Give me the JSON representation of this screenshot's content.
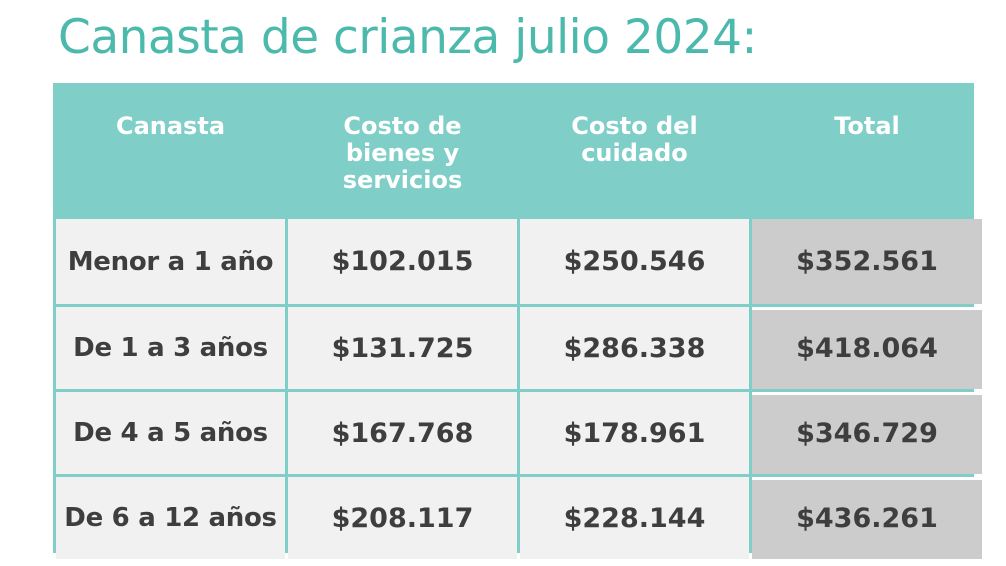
{
  "title": "Canasta de crianza julio 2024:",
  "table": {
    "headers": [
      "Canasta",
      "Costo de\nbienes y\nservicios",
      "Costo del\ncuidado",
      "Total"
    ],
    "rows": [
      [
        "Menor a 1 año",
        "$102.015",
        "$250.546",
        "$352.561"
      ],
      [
        "De 1 a 3 años",
        "$131.725",
        "$286.338",
        "$418.064"
      ],
      [
        "De 4 a 5 años",
        "$167.768",
        "$178.961",
        "$346.729"
      ],
      [
        "De 6 a 12 años",
        "$208.117",
        "$228.144",
        "$436.261"
      ]
    ]
  },
  "colors": {
    "title": "#4cb9ad",
    "header_bg": "#7fcfc8",
    "cell_bg": "#f1f1f1",
    "total_bg": "#cccccc",
    "text": "#3e3e3e"
  }
}
